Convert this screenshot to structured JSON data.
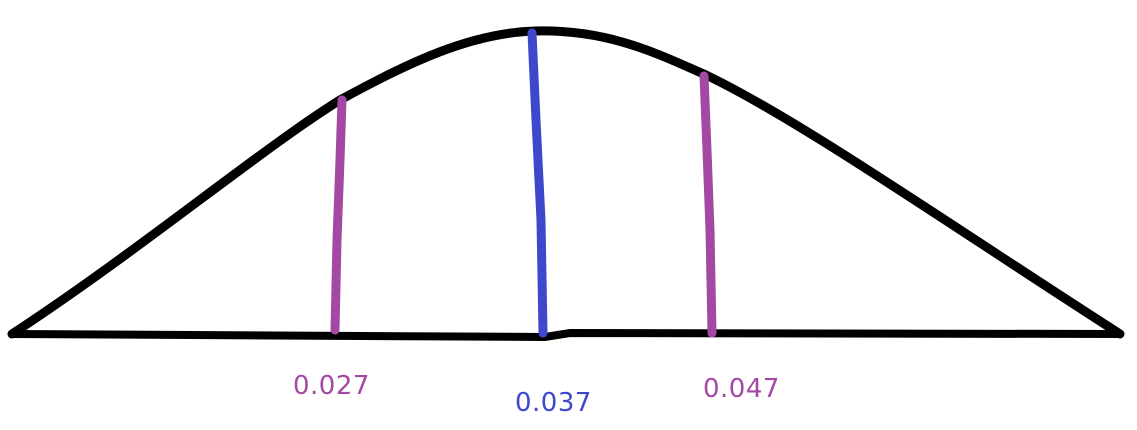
{
  "diagram": {
    "type": "normal-distribution-sketch",
    "colors": {
      "curve": "#000000",
      "axis": "#000000",
      "mean_line": "#3f48cc",
      "bound_line": "#a349a4",
      "background": "#ffffff"
    },
    "markers": [
      {
        "value": 0.027,
        "label": "0.027",
        "role": "lower",
        "color": "#a349a4"
      },
      {
        "value": 0.037,
        "label": "0.037",
        "role": "mean",
        "color": "#3f48cc"
      },
      {
        "value": 0.047,
        "label": "0.047",
        "role": "upper",
        "color": "#a349a4"
      }
    ]
  }
}
